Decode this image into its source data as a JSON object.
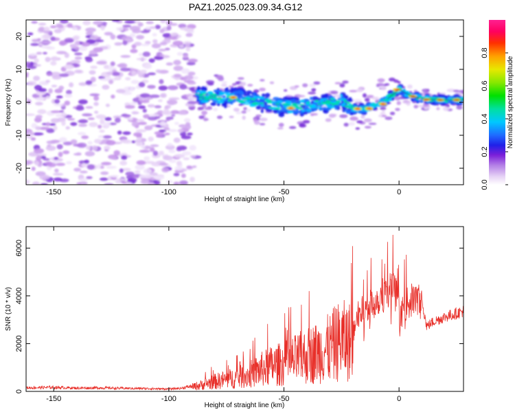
{
  "figure": {
    "title": "PAZ1.2025.023.09.34.G12"
  },
  "colors": {
    "snr_line": "#e8302a",
    "frame": "#000000"
  },
  "chart_data": [
    {
      "type": "heatmap",
      "xlabel": "Height of straight line (km)",
      "ylabel": "Frequency (Hz)",
      "xlim": [
        -162,
        28
      ],
      "ylim": [
        -25,
        25
      ],
      "xticks": [
        -150,
        -100,
        -50,
        0
      ],
      "yticks": [
        -20,
        -10,
        0,
        10,
        20
      ],
      "grid": false,
      "colorbar": {
        "label": "Normalized spectral amplitude",
        "range": [
          0,
          1
        ],
        "ticks": [
          0.0,
          0.2,
          0.4,
          0.6,
          0.8
        ]
      },
      "ridge": {
        "description": "dominant frequency ridge",
        "x": [
          -88,
          -80,
          -70,
          -60,
          -50,
          -40,
          -30,
          -25,
          -20,
          -15,
          -10,
          -5,
          0,
          5,
          10,
          20,
          28
        ],
        "y": [
          2,
          1.5,
          1.5,
          0,
          -1.5,
          -1,
          0,
          0.5,
          -2,
          -2,
          -1,
          1,
          4,
          2,
          1,
          0.7,
          0.7
        ]
      }
    },
    {
      "type": "line",
      "xlabel": "Height of straight line (km)",
      "ylabel": "SNR (10 * v/v)",
      "xlim": [
        -162,
        28
      ],
      "ylim": [
        0,
        6900
      ],
      "xticks": [
        -150,
        -100,
        -50,
        0
      ],
      "yticks": [
        0,
        2000,
        4000,
        6000
      ],
      "grid": false,
      "series": [
        {
          "color": "#e8302a",
          "x": [
            -162,
            -150,
            -140,
            -130,
            -120,
            -110,
            -100,
            -95,
            -90,
            -85,
            -80,
            -75,
            -70,
            -65,
            -60,
            -55,
            -50,
            -45,
            -40,
            -35,
            -30,
            -28,
            -25,
            -22,
            -20,
            -18,
            -15,
            -12,
            -10,
            -8,
            -5,
            -3,
            -1,
            0,
            2,
            5,
            8,
            10,
            12,
            15,
            20,
            25,
            28
          ],
          "y": [
            150,
            170,
            140,
            150,
            130,
            120,
            100,
            130,
            220,
            350,
            500,
            600,
            700,
            850,
            1100,
            1300,
            1400,
            1600,
            1800,
            2000,
            2200,
            2400,
            2600,
            2500,
            2600,
            3500,
            3700,
            3900,
            4100,
            4300,
            4500,
            4700,
            4300,
            3200,
            3800,
            4100,
            4200,
            3900,
            2800,
            3000,
            3200,
            3350,
            3450
          ]
        }
      ]
    }
  ]
}
